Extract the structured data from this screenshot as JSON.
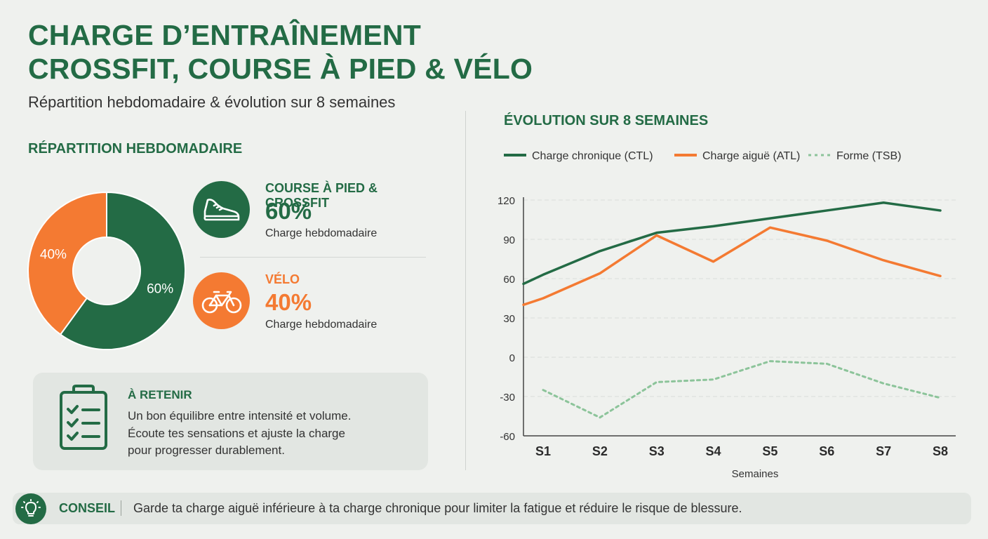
{
  "header": {
    "title_line1": "CHARGE D’ENTRAÎNEMENT",
    "title_line2": "CROSSFIT, COURSE À PIED & VÉLO",
    "subtitle": "Répartition hebdomadaire & évolution sur 8 semaines"
  },
  "repartition": {
    "section_title": "RÉPARTITION HEBDOMADAIRE",
    "items": [
      {
        "label": "COURSE À PIED & CROSSFIT",
        "percent": "60%",
        "note": "Charge hebdomadaire",
        "icon": "running-shoe-icon",
        "color": "#236b45"
      },
      {
        "label": "VÉLO",
        "percent": "40%",
        "note": "Charge hebdomadaire",
        "icon": "bicycle-icon",
        "color": "#f47a32"
      }
    ]
  },
  "retain": {
    "title": "À RETENIR",
    "line1": "Un bon équilibre entre intensité et volume.",
    "line2": "Écoute tes sensations et ajuste la charge",
    "line3": "pour progresser durablement.",
    "icon": "clipboard-checklist-icon"
  },
  "evolution": {
    "section_title": "ÉVOLUTION SUR 8 SEMAINES"
  },
  "tip": {
    "icon": "lightbulb-icon",
    "label": "CONSEIL",
    "text": "Garde ta charge aiguë inférieure à ta charge chronique pour limiter la fatigue et réduire le risque de blessure."
  },
  "colors": {
    "green": "#236b45",
    "orange": "#f47a32",
    "light_green": "#8cc49a"
  },
  "chart_data": [
    {
      "type": "pie",
      "style": "donut",
      "categories": [
        "Course à pied & CrossFit",
        "Vélo"
      ],
      "values": [
        60,
        40
      ],
      "labels": [
        "60%",
        "40%"
      ],
      "colors": [
        "#236b45",
        "#f47a32"
      ]
    },
    {
      "type": "line",
      "title": "ÉVOLUTION SUR 8 SEMAINES",
      "xlabel": "Semaines",
      "ylabel": "",
      "categories": [
        "S1",
        "S2",
        "S3",
        "S4",
        "S5",
        "S6",
        "S7",
        "S8"
      ],
      "ylim": [
        -60,
        120
      ],
      "yticks": [
        120,
        90,
        60,
        30,
        0,
        -30,
        -60
      ],
      "grid": true,
      "legend": "top",
      "series": [
        {
          "name": "Charge chronique (CTL)",
          "color": "#236b45",
          "dash": "solid",
          "values": [
            63,
            81,
            95,
            100,
            106,
            112,
            118,
            112
          ]
        },
        {
          "name": "Charge aiguë (ATL)",
          "color": "#f47a32",
          "dash": "solid",
          "values": [
            45,
            64,
            93,
            73,
            99,
            89,
            74,
            62
          ]
        },
        {
          "name": "Forme (TSB)",
          "color": "#8cc49a",
          "dash": "dotted",
          "values": [
            -25,
            -46,
            -19,
            -17,
            -3,
            -5,
            -20,
            -31
          ]
        }
      ]
    }
  ]
}
